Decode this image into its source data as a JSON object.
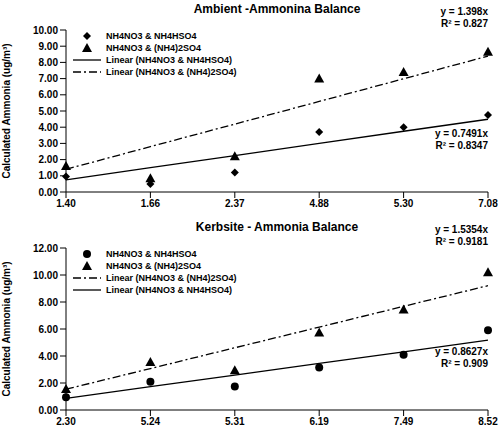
{
  "chart_data": [
    {
      "type": "scatter",
      "title": "Ambient -Ammonina Balance",
      "y_label": "Calculated Ammonia (ug/m³)",
      "categories": [
        "1.40",
        "1.66",
        "2.37",
        "4.88",
        "5.30",
        "7.08"
      ],
      "ylim": [
        0,
        10
      ],
      "yticks": [
        {
          "value": 0,
          "label": "0.00"
        },
        {
          "value": 1,
          "label": "1.00"
        },
        {
          "value": 2,
          "label": "2.00"
        },
        {
          "value": 3,
          "label": "3.00"
        },
        {
          "value": 4,
          "label": "4.00"
        },
        {
          "value": 5,
          "label": "5.00"
        },
        {
          "value": 6,
          "label": "6.00"
        },
        {
          "value": 7,
          "label": "7.00"
        },
        {
          "value": 8,
          "label": "8.00"
        },
        {
          "value": 9,
          "label": "9.00"
        },
        {
          "value": 10,
          "label": "10.00"
        }
      ],
      "grid": false,
      "legend": "top-left",
      "series": [
        {
          "name": "NH4NO3 & NH4HSO4",
          "type": "scatter",
          "marker": "diamond",
          "color": "#000000",
          "values": [
            0.95,
            0.5,
            1.2,
            3.7,
            4.0,
            4.75
          ]
        },
        {
          "name": "NH4NO3 & (NH4)2SO4",
          "type": "scatter",
          "marker": "triangle",
          "color": "#000000",
          "values": [
            1.6,
            0.85,
            2.2,
            7.0,
            7.4,
            8.65
          ]
        },
        {
          "name": "Linear (NH4NO3 & NH4HSO4)",
          "type": "line",
          "line_style": "solid",
          "color": "#000000",
          "values": [
            0.75,
            1.5,
            2.25,
            3.0,
            3.75,
            4.49
          ]
        },
        {
          "name": "Linear (NH4NO3 & (NH4)2SO4)",
          "type": "line",
          "line_style": "dashdot",
          "color": "#000000",
          "values": [
            1.4,
            2.8,
            4.19,
            5.59,
            6.99,
            8.39
          ]
        }
      ],
      "annotations": [
        "y = 1.398x",
        "R² = 0.827",
        "y = 0.7491x",
        "R² = 0.8347"
      ]
    },
    {
      "type": "scatter",
      "title": "Kerbsite - Ammonia Balance",
      "y_label": "Calculated Ammonia (ug/m³)",
      "categories": [
        "2.30",
        "5.24",
        "5.31",
        "6.19",
        "7.49",
        "8.52"
      ],
      "ylim": [
        0,
        12
      ],
      "yticks": [
        {
          "value": 0,
          "label": "0.00"
        },
        {
          "value": 2,
          "label": "2.00"
        },
        {
          "value": 4,
          "label": "4.00"
        },
        {
          "value": 6,
          "label": "6.00"
        },
        {
          "value": 8,
          "label": "8.00"
        },
        {
          "value": 10,
          "label": "10.00"
        },
        {
          "value": 12,
          "label": "12.00"
        }
      ],
      "grid": false,
      "legend": "top-left",
      "series": [
        {
          "name": "NH4NO3 & NH4HSO4",
          "type": "scatter",
          "marker": "circle",
          "color": "#000000",
          "values": [
            0.95,
            2.1,
            1.75,
            3.15,
            4.1,
            5.9
          ]
        },
        {
          "name": "NH4NO3 & (NH4)2SO4",
          "type": "scatter",
          "marker": "triangle",
          "color": "#000000",
          "values": [
            1.55,
            3.55,
            2.95,
            5.75,
            7.45,
            10.2
          ]
        },
        {
          "name": "Linear (NH4NO3 & (NH4)2SO4)",
          "type": "line",
          "line_style": "dashdot",
          "color": "#000000",
          "values": [
            1.54,
            3.07,
            4.61,
            6.14,
            7.68,
            9.21
          ]
        },
        {
          "name": "Linear (NH4NO3 & NH4HSO4)",
          "type": "line",
          "line_style": "solid",
          "color": "#000000",
          "values": [
            0.86,
            1.73,
            2.59,
            3.45,
            4.31,
            5.18
          ]
        }
      ],
      "annotations": [
        "y = 1.5354x",
        "R² = 0.9181",
        "y = 0.8627x",
        "R² = 0.909"
      ]
    }
  ]
}
